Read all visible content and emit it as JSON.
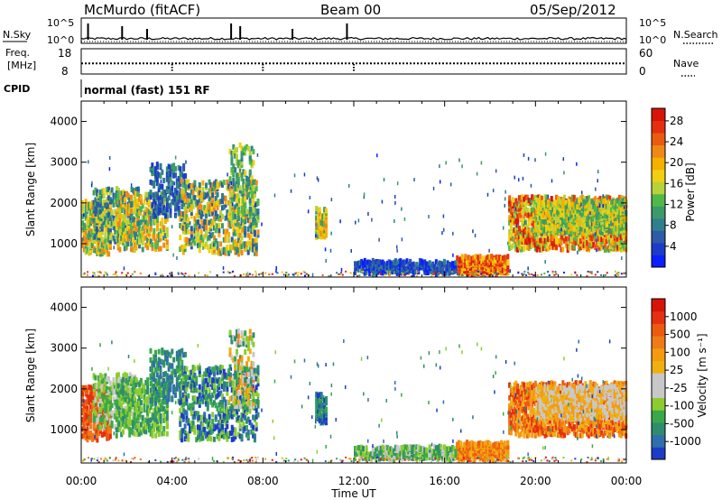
{
  "header": {
    "station": "McMurdo (fitACF)",
    "beam": "Beam 00",
    "date": "05/Sep/2012"
  },
  "side_labels": {
    "nsky": "N.Sky",
    "nsearch": "N.Search",
    "freq_top": "Freq.",
    "freq_unit": "[MHz]",
    "nave": "Nave",
    "cpid": "CPID"
  },
  "cpid_text": "normal (fast) 151 RF",
  "chart_data": [
    {
      "type": "line",
      "panel": "noise",
      "yticks_left": [
        "10^5",
        "10^0"
      ],
      "yticks_right": [
        "10^5",
        "10^0"
      ],
      "spike_hours": [
        0.3,
        1.8,
        2.9,
        6.6,
        7.0,
        9.3,
        11.7
      ]
    },
    {
      "type": "line",
      "panel": "frequency",
      "ylim_left": [
        8,
        18
      ],
      "yticks_left": [
        "18",
        "8"
      ],
      "ylim_right": [
        0,
        60
      ],
      "yticks_right": [
        "60",
        "0"
      ],
      "freq_mhz": 12.2,
      "nave_marker_hours": [
        4.0,
        8.0,
        12.0
      ]
    },
    {
      "type": "heatmap",
      "panel": "power",
      "ylabel": "Slant Range [km]",
      "ylim": [
        180,
        4500
      ],
      "yticks": [
        1000,
        2000,
        3000,
        4000
      ],
      "xlim": [
        0,
        24
      ],
      "colorbar": {
        "label": "Power [dB]",
        "range": [
          0,
          30
        ],
        "ticks": [
          "4",
          "8",
          "12",
          "16",
          "20",
          "24",
          "28"
        ],
        "colors": [
          "#0a20ff",
          "#1c3cc8",
          "#2e5aa8",
          "#2f7f8c",
          "#3a9a6a",
          "#50b848",
          "#b8d23a",
          "#f0d010",
          "#f5b000",
          "#f08818",
          "#ec5a10",
          "#e43010",
          "#d81408"
        ]
      }
    },
    {
      "type": "heatmap",
      "panel": "velocity",
      "ylabel": "Slant Range [km]",
      "ylim": [
        180,
        4500
      ],
      "yticks": [
        1000,
        2000,
        3000,
        4000
      ],
      "xlim": [
        0,
        24
      ],
      "xlabel": "Time UT",
      "xticks": [
        "00:00",
        "04:00",
        "08:00",
        "12:00",
        "16:00",
        "20:00",
        "00:00"
      ],
      "colorbar": {
        "label": "Velocity [m s⁻¹]",
        "ticks": [
          "1000",
          "500",
          "100",
          "25",
          "-25",
          "-100",
          "-500",
          "-1000"
        ],
        "colors": [
          "#1c3cc8",
          "#2f6fae",
          "#2f8c6c",
          "#3aa84a",
          "#8ccc30",
          "#c8c8c8",
          "#c8c8c8",
          "#f0b010",
          "#f59a10",
          "#f07a18",
          "#ec5a10",
          "#e43010",
          "#d81408"
        ]
      }
    }
  ]
}
